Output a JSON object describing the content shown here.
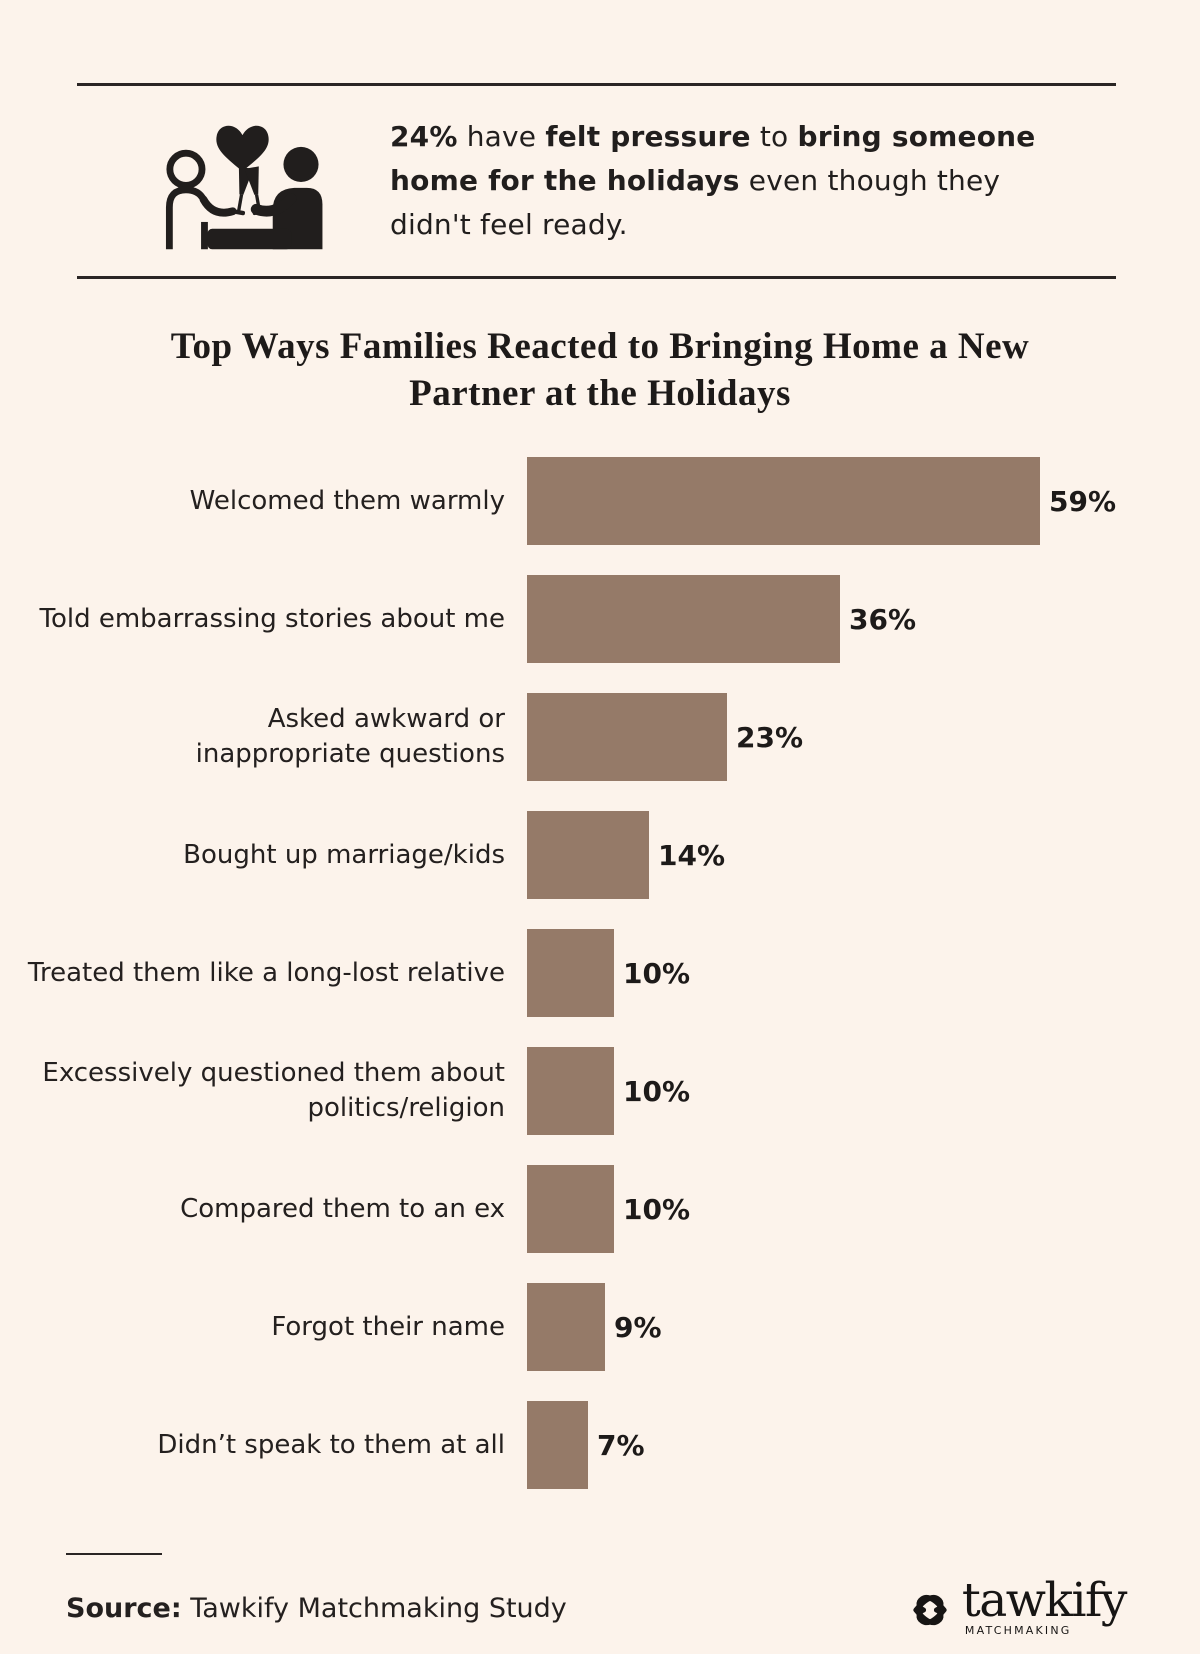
{
  "page": {
    "background": "#fcf3eb",
    "ink": "#211e1d"
  },
  "header": {
    "icon": "couple-toast-heart-icon",
    "stat_segments": [
      {
        "text": "24%",
        "bold": true
      },
      {
        "text": " have ",
        "bold": false
      },
      {
        "text": "felt pressure",
        "bold": true
      },
      {
        "text": " to ",
        "bold": false
      },
      {
        "text": "bring someone home for the holidays",
        "bold": true
      },
      {
        "text": " even though they didn't feel ready.",
        "bold": false
      }
    ]
  },
  "chart_data": {
    "type": "bar",
    "orientation": "horizontal",
    "title": "Top Ways Families Reacted to Bringing Home a New Partner at the Holidays",
    "title_lines": [
      "Top Ways Families Reacted to Bringing Home a New",
      "Partner at the Holidays"
    ],
    "categories": [
      "Welcomed them warmly",
      "Told embarrassing stories about me",
      "Asked awkward or inappropriate questions",
      "Bought up marriage/kids",
      "Treated them like a long-lost relative",
      "Excessively questioned them about politics/religion",
      "Compared them to an ex",
      "Forgot their name",
      "Didn’t speak to them at all"
    ],
    "category_display_lines": [
      [
        "Welcomed them warmly"
      ],
      [
        "Told embarrassing stories about me"
      ],
      [
        "Asked awkward or",
        "inappropriate questions"
      ],
      [
        "Bought up marriage/kids"
      ],
      [
        "Treated them like a long-lost relative"
      ],
      [
        "Excessively questioned them about",
        "politics/religion"
      ],
      [
        "Compared them to an ex"
      ],
      [
        "Forgot their name"
      ],
      [
        "Didn’t speak to them at all"
      ]
    ],
    "values": [
      59,
      36,
      23,
      14,
      10,
      10,
      10,
      9,
      7
    ],
    "value_labels": [
      "59%",
      "36%",
      "23%",
      "14%",
      "10%",
      "10%",
      "10%",
      "9%",
      "7%"
    ],
    "xlim": [
      0,
      59
    ],
    "bar_color": "#957a68",
    "grid": false,
    "legend": false,
    "value_label_position": "right-of-bar"
  },
  "footer": {
    "source_label": "Source:",
    "source_text": " Tawkify Matchmaking Study",
    "logo": {
      "icon": "interlocked-hearts-icon",
      "brand": "tawkify",
      "tagline": "MATCHMAKING"
    }
  }
}
